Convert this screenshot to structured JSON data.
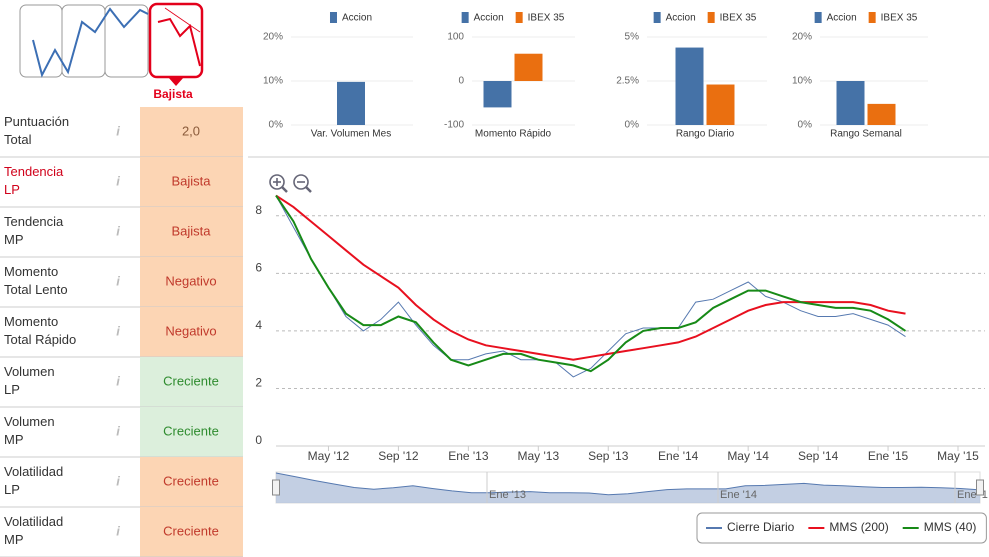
{
  "signal": {
    "label": "Bajista"
  },
  "indicators": [
    {
      "label": "Puntuación\nTotal",
      "value": "2,0",
      "label_color": "#333",
      "text_color": "#8a5a3a",
      "background": "#fcd5b4"
    },
    {
      "label": "Tendencia\nLP",
      "value": "Bajista",
      "label_color": "#d0021b",
      "text_color": "#c0392b",
      "background": "#fcd5b4"
    },
    {
      "label": "Tendencia\nMP",
      "value": "Bajista",
      "label_color": "#333",
      "text_color": "#c0392b",
      "background": "#fcd5b4"
    },
    {
      "label": "Momento\nTotal Lento",
      "value": "Negativo",
      "label_color": "#333",
      "text_color": "#c0392b",
      "background": "#fcd5b4"
    },
    {
      "label": "Momento\nTotal Rápido",
      "value": "Negativo",
      "label_color": "#333",
      "text_color": "#c0392b",
      "background": "#fcd5b4"
    },
    {
      "label": "Volumen\nLP",
      "value": "Creciente",
      "label_color": "#333",
      "text_color": "#2e8b2e",
      "background": "#dcefdc"
    },
    {
      "label": "Volumen\nMP",
      "value": "Creciente",
      "label_color": "#333",
      "text_color": "#2e8b2e",
      "background": "#dcefdc"
    },
    {
      "label": "Volatilidad\nLP",
      "value": "Creciente",
      "label_color": "#333",
      "text_color": "#c0392b",
      "background": "#fcd5b4"
    },
    {
      "label": "Volatilidad\nMP",
      "value": "Creciente",
      "label_color": "#333",
      "text_color": "#c0392b",
      "background": "#fcd5b4"
    }
  ],
  "chart_data": [
    {
      "type": "bar",
      "categories": [
        "Var. Volumen Mes"
      ],
      "series": [
        {
          "name": "Accion",
          "color": "#4572a7",
          "values": [
            9.8
          ]
        }
      ],
      "ylim": [
        0,
        20
      ],
      "yticks": [
        {
          "value": 0,
          "label": "0%"
        },
        {
          "value": 10,
          "label": "10%"
        },
        {
          "value": 20,
          "label": "20%"
        }
      ]
    },
    {
      "type": "bar",
      "categories": [
        "Momento Rápido"
      ],
      "series": [
        {
          "name": "Accion",
          "color": "#4572a7",
          "values": [
            -60
          ]
        },
        {
          "name": "IBEX 35",
          "color": "#ea6f10",
          "values": [
            62
          ]
        }
      ],
      "ylim": [
        -100,
        100
      ],
      "yticks": [
        -100,
        0,
        100
      ]
    },
    {
      "type": "bar",
      "categories": [
        "Rango Diario"
      ],
      "series": [
        {
          "name": "Accion",
          "color": "#4572a7",
          "values": [
            4.4
          ]
        },
        {
          "name": "IBEX 35",
          "color": "#ea6f10",
          "values": [
            2.3
          ]
        }
      ],
      "ylim": [
        0,
        5
      ],
      "yticks": [
        {
          "value": 0,
          "label": "0%"
        },
        {
          "value": 2.5,
          "label": "2.5%"
        },
        {
          "value": 5,
          "label": "5%"
        }
      ]
    },
    {
      "type": "bar",
      "categories": [
        "Rango Semanal"
      ],
      "series": [
        {
          "name": "Accion",
          "color": "#4572a7",
          "values": [
            10
          ]
        },
        {
          "name": "IBEX 35",
          "color": "#ea6f10",
          "values": [
            4.8
          ]
        }
      ],
      "ylim": [
        0,
        20
      ],
      "yticks": [
        {
          "value": 0,
          "label": "0%"
        },
        {
          "value": 10,
          "label": "10%"
        },
        {
          "value": 20,
          "label": "20%"
        }
      ]
    },
    {
      "type": "line",
      "x": [
        "2012-02",
        "2012-03",
        "2012-04",
        "2012-05",
        "2012-06",
        "2012-07",
        "2012-08",
        "2012-09",
        "2012-10",
        "2012-11",
        "2012-12",
        "2013-01",
        "2013-02",
        "2013-03",
        "2013-04",
        "2013-05",
        "2013-06",
        "2013-07",
        "2013-08",
        "2013-09",
        "2013-10",
        "2013-11",
        "2013-12",
        "2014-01",
        "2014-02",
        "2014-03",
        "2014-04",
        "2014-05",
        "2014-06",
        "2014-07",
        "2014-08",
        "2014-09",
        "2014-10",
        "2014-11",
        "2014-12",
        "2015-01",
        "2015-02"
      ],
      "xlim": [
        "2012-02",
        "2015-05"
      ],
      "xticks": [
        {
          "value": "2012-05",
          "label": "May '12"
        },
        {
          "value": "2012-09",
          "label": "Sep '12"
        },
        {
          "value": "2013-01",
          "label": "Ene '13"
        },
        {
          "value": "2013-05",
          "label": "May '13"
        },
        {
          "value": "2013-09",
          "label": "Sep '13"
        },
        {
          "value": "2014-01",
          "label": "Ene '14"
        },
        {
          "value": "2014-05",
          "label": "May '14"
        },
        {
          "value": "2014-09",
          "label": "Sep '14"
        },
        {
          "value": "2015-01",
          "label": "Ene '15"
        },
        {
          "value": "2015-05",
          "label": "May '15"
        }
      ],
      "ylim": [
        0,
        9
      ],
      "yticks": [
        0,
        2,
        4,
        6,
        8
      ],
      "grid": true,
      "legend": "bottom-right",
      "series": [
        {
          "name": "Cierre Diario",
          "color": "#5679b0",
          "values": [
            8.7,
            7.6,
            6.5,
            5.5,
            4.5,
            4.0,
            4.4,
            5.0,
            4.2,
            3.5,
            3.0,
            3.0,
            3.2,
            3.3,
            3.0,
            3.0,
            2.9,
            2.4,
            2.7,
            3.3,
            3.9,
            4.1,
            4.1,
            4.1,
            5.0,
            5.1,
            5.4,
            5.7,
            5.2,
            5.0,
            4.7,
            4.5,
            4.5,
            4.6,
            4.4,
            4.2,
            3.8
          ]
        },
        {
          "name": "MMS (200)",
          "color": "#e8101f",
          "values": [
            8.7,
            8.3,
            7.8,
            7.3,
            6.8,
            6.3,
            5.9,
            5.5,
            4.9,
            4.4,
            4.0,
            3.7,
            3.5,
            3.4,
            3.3,
            3.2,
            3.1,
            3.0,
            3.1,
            3.2,
            3.3,
            3.4,
            3.5,
            3.6,
            3.8,
            4.1,
            4.4,
            4.7,
            4.9,
            5.0,
            5.0,
            5.0,
            5.0,
            5.0,
            4.9,
            4.7,
            4.6
          ]
        },
        {
          "name": "MMS (40)",
          "color": "#178a17",
          "values": [
            8.7,
            7.8,
            6.5,
            5.5,
            4.6,
            4.2,
            4.2,
            4.5,
            4.3,
            3.6,
            3.0,
            2.8,
            3.0,
            3.2,
            3.2,
            3.0,
            2.9,
            2.8,
            2.6,
            3.0,
            3.6,
            4.0,
            4.1,
            4.1,
            4.3,
            4.8,
            5.1,
            5.4,
            5.4,
            5.2,
            5.0,
            4.9,
            4.8,
            4.8,
            4.7,
            4.4,
            4.0
          ]
        }
      ]
    }
  ],
  "navigator": {
    "labels": [
      "Ene '13",
      "Ene '14",
      "Ene '1"
    ]
  }
}
